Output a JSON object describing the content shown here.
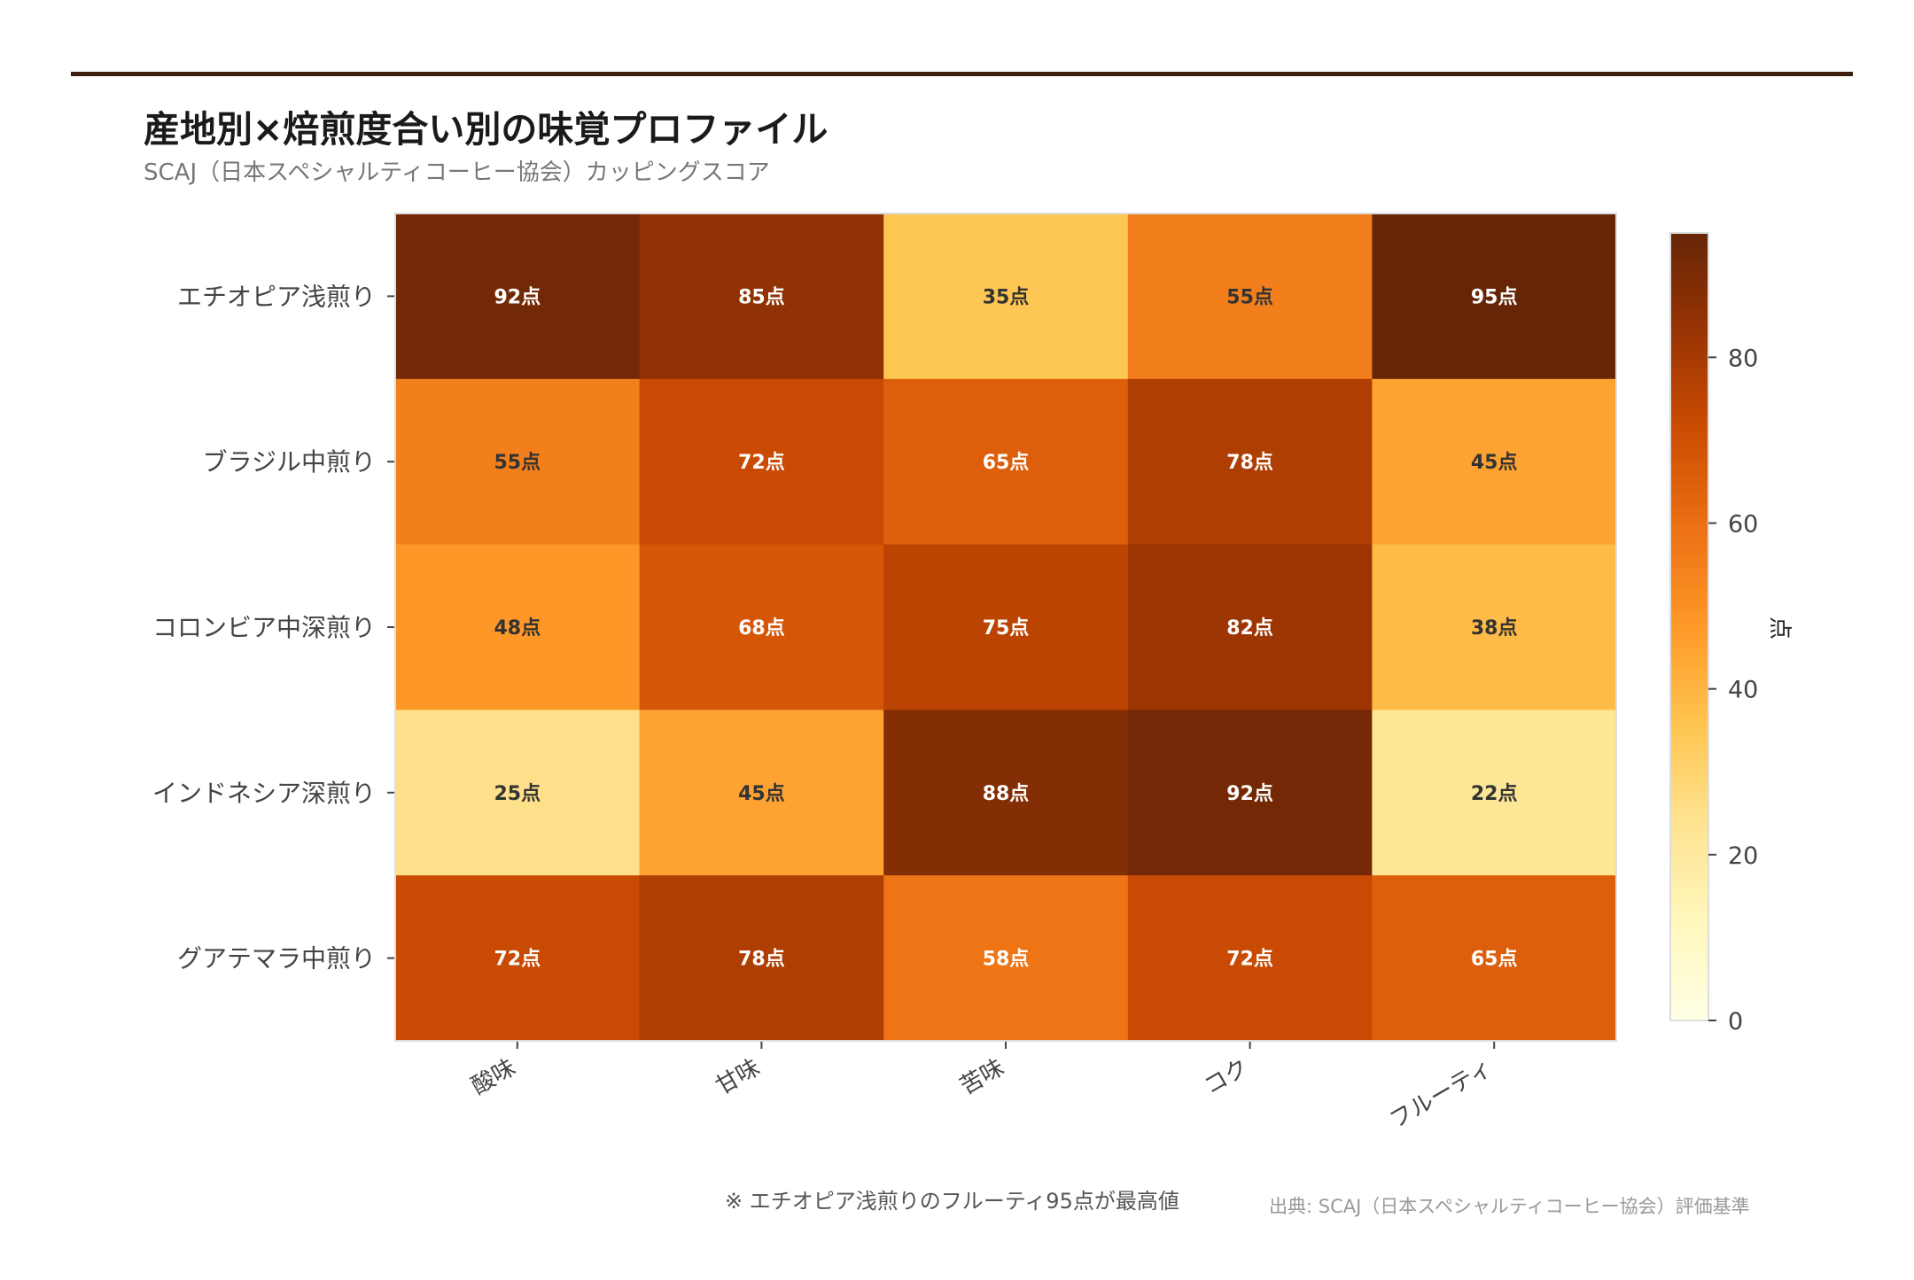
{
  "header": {
    "title": "産地別×焙煎度合い別の味覚プロファイル",
    "subtitle": "SCAJ（日本スペシャルティコーヒー協会）カッピングスコア"
  },
  "chart_data": {
    "type": "heatmap",
    "title": "産地別×焙煎度合い別の味覚プロファイル",
    "rows": [
      "エチオピア浅煎り",
      "ブラジル中煎り",
      "コロンビア中深煎り",
      "インドネシア深煎り",
      "グアテマラ中煎り"
    ],
    "columns": [
      "酸味",
      "甘味",
      "苦味",
      "コク",
      "フルーティ"
    ],
    "values": [
      [
        92,
        85,
        35,
        55,
        95
      ],
      [
        55,
        72,
        65,
        78,
        45
      ],
      [
        48,
        68,
        75,
        82,
        38
      ],
      [
        25,
        45,
        88,
        92,
        22
      ],
      [
        72,
        78,
        58,
        72,
        65
      ]
    ],
    "value_suffix": "点",
    "colormap": "YlOrBr",
    "colorbar": {
      "label": "点",
      "range": [
        0,
        95
      ],
      "ticks": [
        0,
        20,
        40,
        60,
        80
      ]
    },
    "colormap_stops": [
      "#ffffe5",
      "#fff7bc",
      "#fee391",
      "#fec44f",
      "#fe9929",
      "#ec7014",
      "#cc4c02",
      "#993404",
      "#662506"
    ],
    "text_colors": {
      "light": "#ffffff",
      "dark": "#333333"
    }
  },
  "footer": {
    "note": "※ エチオピア浅煎りのフルーティ95点が最高値",
    "source": "出典: SCAJ（日本スペシャルティコーヒー協会）評価基準"
  },
  "colors": {
    "rule": "#3d1f0c"
  }
}
